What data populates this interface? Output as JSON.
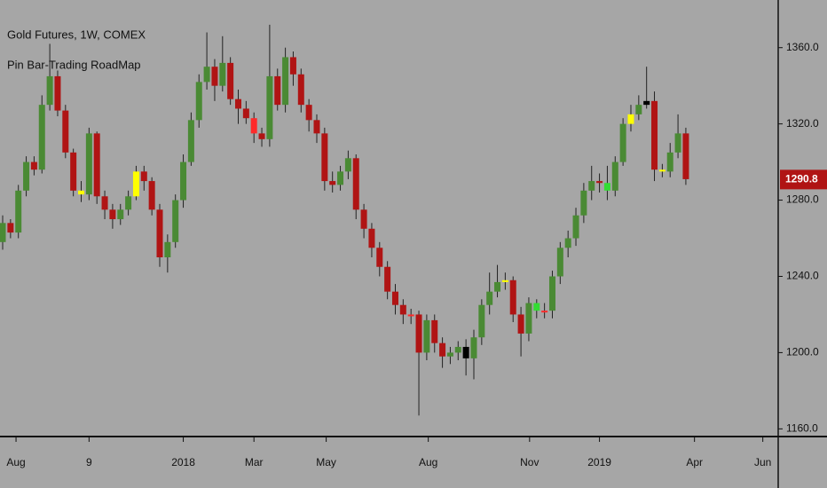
{
  "chart_data": {
    "type": "candlestick",
    "title": "Gold Futures, 1W, COMEX",
    "subtitle": "Pin Bar-Trading RoadMap",
    "open": [
      1258,
      1268,
      1263,
      1285,
      1300,
      1296,
      1330,
      1345,
      1327,
      1305,
      1285,
      1283,
      1315,
      1282,
      1275,
      1270,
      1275,
      1282,
      1295,
      1290,
      1275,
      1250,
      1258,
      1280,
      1300,
      1322,
      1342,
      1350,
      1340,
      1352,
      1333,
      1328,
      1323,
      1315,
      1312,
      1345,
      1330,
      1355,
      1346,
      1330,
      1322,
      1315,
      1290,
      1288,
      1295,
      1302,
      1275,
      1265,
      1255,
      1245,
      1232,
      1225,
      1220,
      1220,
      1200,
      1217,
      1205,
      1198,
      1200,
      1203,
      1197,
      1208,
      1225,
      1232,
      1237,
      1238,
      1220,
      1210,
      1226,
      1222,
      1222,
      1240,
      1255,
      1260,
      1272,
      1285,
      1290,
      1289,
      1285,
      1300,
      1320,
      1325,
      1330,
      1332,
      1296,
      1295,
      1305,
      1315
    ],
    "high": [
      1272,
      1270,
      1288,
      1303,
      1303,
      1335,
      1362,
      1348,
      1330,
      1307,
      1290,
      1318,
      1316,
      1285,
      1278,
      1278,
      1285,
      1298,
      1298,
      1292,
      1278,
      1262,
      1283,
      1304,
      1326,
      1346,
      1368,
      1354,
      1366,
      1355,
      1338,
      1332,
      1326,
      1318,
      1372,
      1349,
      1360,
      1358,
      1349,
      1333,
      1325,
      1318,
      1295,
      1298,
      1306,
      1304,
      1278,
      1268,
      1258,
      1248,
      1236,
      1228,
      1223,
      1222,
      1220,
      1220,
      1208,
      1203,
      1206,
      1207,
      1212,
      1228,
      1242,
      1246,
      1242,
      1240,
      1224,
      1229,
      1228,
      1226,
      1243,
      1258,
      1264,
      1276,
      1289,
      1298,
      1294,
      1298,
      1303,
      1323,
      1330,
      1335,
      1350,
      1337,
      1299,
      1310,
      1325,
      1318
    ],
    "low": [
      1254,
      1260,
      1260,
      1282,
      1293,
      1294,
      1327,
      1324,
      1302,
      1282,
      1279,
      1280,
      1278,
      1270,
      1265,
      1267,
      1272,
      1280,
      1285,
      1272,
      1245,
      1242,
      1255,
      1276,
      1298,
      1318,
      1338,
      1332,
      1337,
      1330,
      1320,
      1320,
      1310,
      1308,
      1308,
      1327,
      1326,
      1340,
      1326,
      1316,
      1310,
      1285,
      1284,
      1285,
      1291,
      1270,
      1260,
      1250,
      1240,
      1228,
      1220,
      1215,
      1215,
      1167,
      1196,
      1200,
      1192,
      1194,
      1196,
      1188,
      1186,
      1204,
      1220,
      1229,
      1233,
      1216,
      1198,
      1206,
      1218,
      1218,
      1218,
      1236,
      1250,
      1256,
      1268,
      1280,
      1284,
      1280,
      1282,
      1298,
      1316,
      1322,
      1328,
      1290,
      1292,
      1292,
      1302,
      1288
    ],
    "close": [
      1268,
      1263,
      1285,
      1300,
      1296,
      1330,
      1345,
      1327,
      1305,
      1285,
      1283,
      1315,
      1282,
      1275,
      1270,
      1275,
      1282,
      1295,
      1290,
      1275,
      1250,
      1258,
      1280,
      1300,
      1322,
      1342,
      1350,
      1340,
      1352,
      1333,
      1328,
      1323,
      1315,
      1312,
      1345,
      1330,
      1355,
      1346,
      1330,
      1322,
      1315,
      1290,
      1288,
      1295,
      1302,
      1275,
      1265,
      1255,
      1245,
      1232,
      1225,
      1220,
      1220,
      1200,
      1217,
      1205,
      1198,
      1200,
      1203,
      1197,
      1208,
      1225,
      1232,
      1237,
      1238,
      1220,
      1210,
      1226,
      1222,
      1222,
      1240,
      1255,
      1260,
      1272,
      1285,
      1290,
      1289,
      1285,
      1300,
      1320,
      1325,
      1330,
      1332,
      1296,
      1295,
      1305,
      1315,
      1291
    ],
    "colors": [
      "#4a8a34",
      "#b01414",
      "#4a8a34",
      "#4a8a34",
      "#b01414",
      "#4a8a34",
      "#4a8a34",
      "#b01414",
      "#b01414",
      "#b01414",
      "#ffff00",
      "#4a8a34",
      "#b01414",
      "#b01414",
      "#b01414",
      "#4a8a34",
      "#4a8a34",
      "#ffff00",
      "#b01414",
      "#b01414",
      "#b01414",
      "#4a8a34",
      "#4a8a34",
      "#4a8a34",
      "#4a8a34",
      "#4a8a34",
      "#4a8a34",
      "#b01414",
      "#4a8a34",
      "#b01414",
      "#b01414",
      "#b01414",
      "#ff2a2a",
      "#b01414",
      "#4a8a34",
      "#b01414",
      "#4a8a34",
      "#b01414",
      "#b01414",
      "#b01414",
      "#b01414",
      "#b01414",
      "#b01414",
      "#4a8a34",
      "#4a8a34",
      "#b01414",
      "#b01414",
      "#b01414",
      "#b01414",
      "#b01414",
      "#b01414",
      "#b01414",
      "#ff2a2a",
      "#b01414",
      "#4a8a34",
      "#b01414",
      "#b01414",
      "#4a8a34",
      "#4a8a34",
      "#000000",
      "#4a8a34",
      "#4a8a34",
      "#4a8a34",
      "#4a8a34",
      "#ffff00",
      "#b01414",
      "#b01414",
      "#4a8a34",
      "#33dd33",
      "#ff2a2a",
      "#4a8a34",
      "#4a8a34",
      "#4a8a34",
      "#4a8a34",
      "#4a8a34",
      "#4a8a34",
      "#b01414",
      "#33dd33",
      "#4a8a34",
      "#4a8a34",
      "#ffff00",
      "#4a8a34",
      "#000000",
      "#b01414",
      "#ffff00",
      "#4a8a34",
      "#4a8a34",
      "#b01414"
    ],
    "xlim": [
      -0.34,
      98.76
    ],
    "xticks": [
      {
        "value": 1.7,
        "label": "Aug"
      },
      {
        "value": 11,
        "label": "9"
      },
      {
        "value": 23,
        "label": "2018"
      },
      {
        "value": 32,
        "label": "Mar"
      },
      {
        "value": 41.2,
        "label": "May"
      },
      {
        "value": 54.2,
        "label": "Aug"
      },
      {
        "value": 67.1,
        "label": "Nov"
      },
      {
        "value": 76,
        "label": "2019"
      },
      {
        "value": 88.1,
        "label": "Apr"
      },
      {
        "value": 96.8,
        "label": "Jun"
      }
    ],
    "ylim": [
      1156.9,
      1385
    ],
    "yticks": [
      {
        "value": 1160,
        "label": "1160.0"
      },
      {
        "value": 1200,
        "label": "1200.0"
      },
      {
        "value": 1240,
        "label": "1240.0"
      },
      {
        "value": 1280,
        "label": "1280.0"
      },
      {
        "value": 1320,
        "label": "1320.0"
      },
      {
        "value": 1360,
        "label": "1360.0"
      }
    ],
    "last_price": 1290.8,
    "last_price_color": "#b01414"
  }
}
